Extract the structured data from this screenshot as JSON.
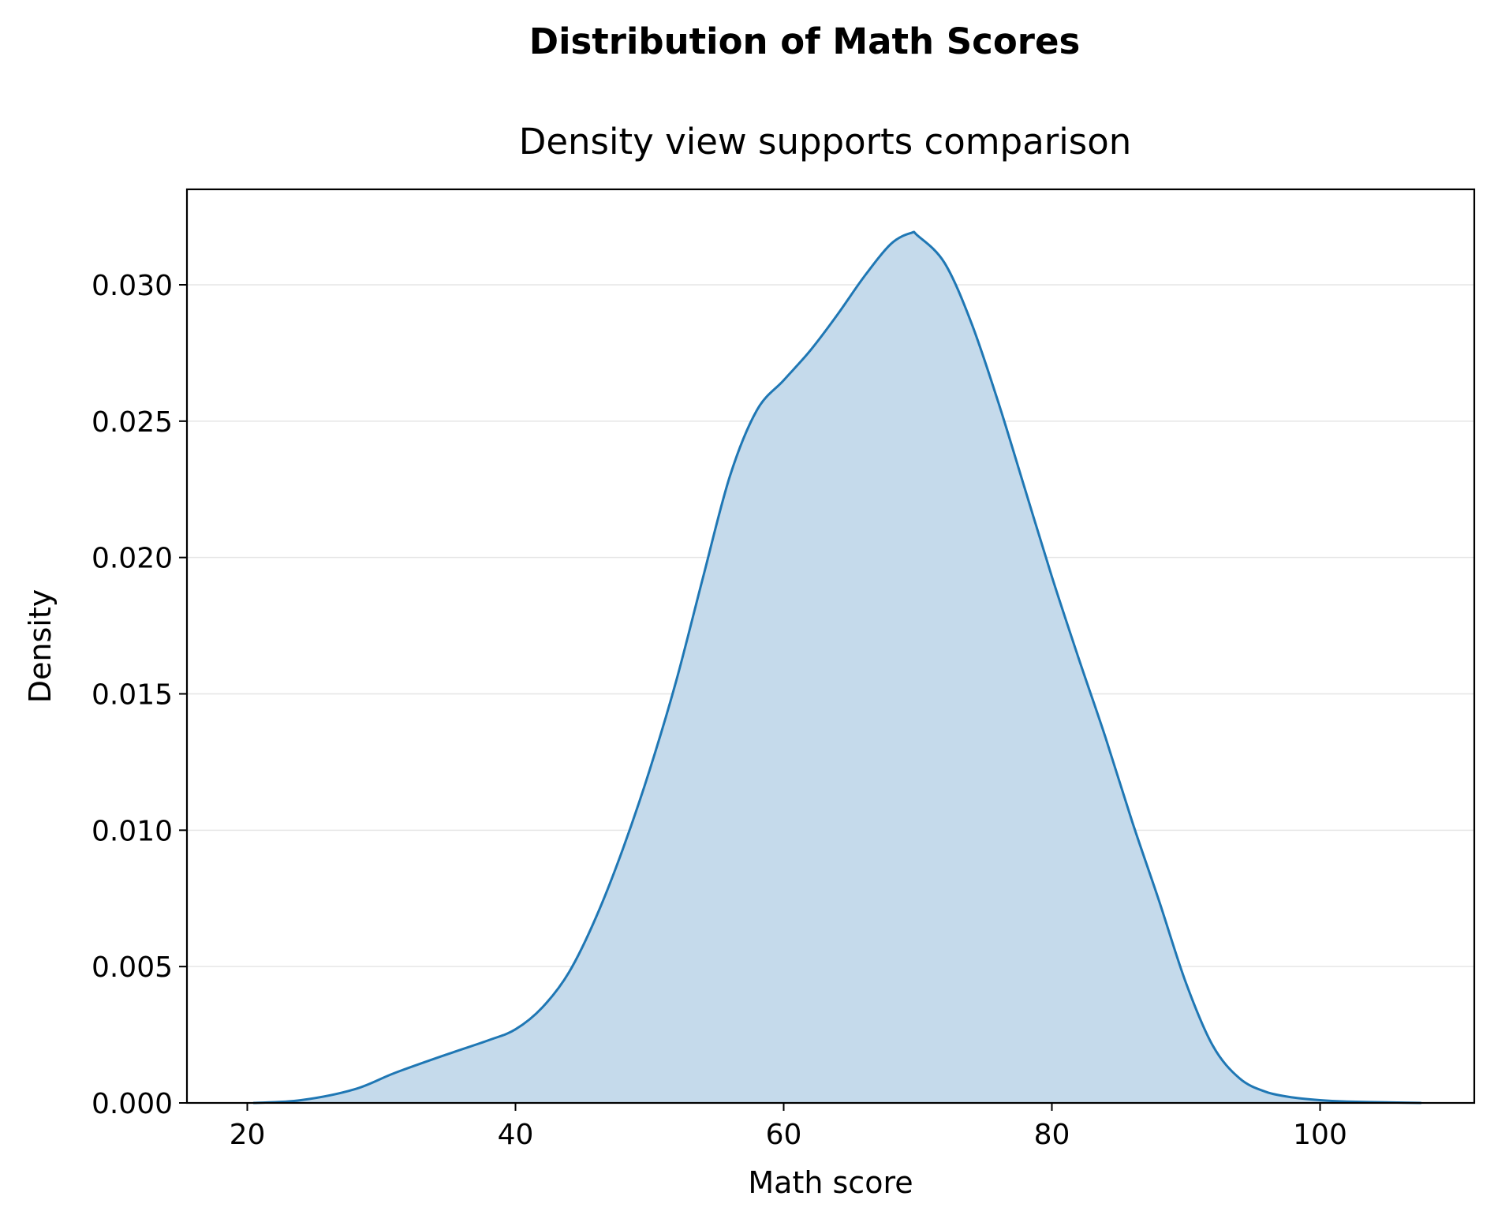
{
  "chart_data": {
    "type": "area",
    "suptitle": "Distribution of Math Scores",
    "title": "Density view supports comparison",
    "xlabel": "Math score",
    "ylabel": "Density",
    "xlim": [
      15.5,
      111.5
    ],
    "ylim": [
      0,
      0.0335
    ],
    "xticks": [
      20,
      40,
      60,
      80,
      100
    ],
    "xtick_labels": [
      "20",
      "40",
      "60",
      "80",
      "100"
    ],
    "yticks": [
      0,
      0.005,
      0.01,
      0.015,
      0.02,
      0.025,
      0.03
    ],
    "ytick_labels": [
      "0.000",
      "0.005",
      "0.010",
      "0.015",
      "0.020",
      "0.025",
      "0.030"
    ],
    "grid": "horizontal",
    "legend": "none",
    "colors": {
      "line": "#1f77b4",
      "fill": "#c5daeb",
      "grid": "#e6e6e6",
      "axis": "#000000"
    },
    "series": [
      {
        "x": [
          20.5,
          24,
          28,
          31,
          35,
          38,
          40,
          42,
          44,
          46,
          48,
          50,
          52,
          54,
          56,
          58,
          60,
          62,
          64,
          66,
          68,
          69.5,
          70,
          72,
          74,
          76,
          78,
          80,
          82,
          84,
          86,
          88,
          90,
          92,
          94,
          96,
          98,
          100,
          102,
          105,
          107.5
        ],
        "y": [
          0.0,
          0.0001,
          0.0005,
          0.0011,
          0.0018,
          0.0023,
          0.0027,
          0.0035,
          0.0048,
          0.0068,
          0.0093,
          0.0122,
          0.0155,
          0.0193,
          0.023,
          0.0254,
          0.0265,
          0.0276,
          0.0289,
          0.0303,
          0.0315,
          0.0319,
          0.0318,
          0.0308,
          0.0286,
          0.0257,
          0.0225,
          0.0193,
          0.0163,
          0.0134,
          0.0103,
          0.0074,
          0.0044,
          0.0021,
          0.0009,
          0.0004,
          0.0002,
          0.0001,
          5e-05,
          2e-05,
          0.0
        ]
      }
    ]
  }
}
